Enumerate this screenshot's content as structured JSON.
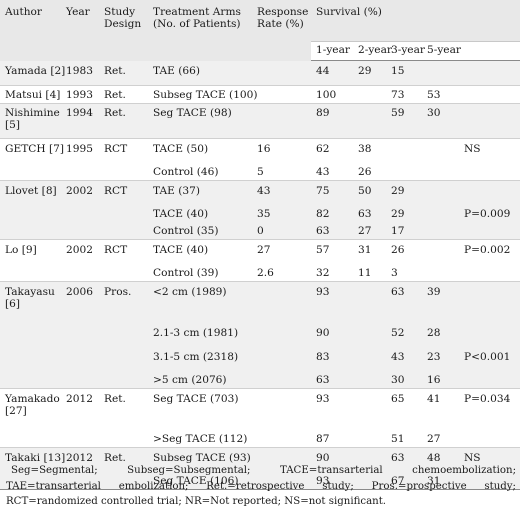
{
  "headers": {
    "author": "Author",
    "year": "Year",
    "design_line1": "Study",
    "design_line2": "Design",
    "arms_line1": "Treatment Arms",
    "arms_line2": "(No. of Patients)",
    "response_line1": "Response",
    "response_line2": "Rate (%)",
    "survival": "Survival (%)",
    "y1": "1-year",
    "y2": "2-year",
    "y3": "3-year",
    "y5": "5-year"
  },
  "rows": [
    {
      "author": "Yamada [2]",
      "year": "1983",
      "design": "Ret.",
      "arm": "TAE (66)",
      "rr": "",
      "y1": "44",
      "y2": "29",
      "y3": "15",
      "y5": "",
      "p": ""
    },
    {
      "author": "Matsui [4]",
      "year": "1993",
      "design": "Ret.",
      "arm": "Subseg TACE (100)",
      "rr": "",
      "y1": "100",
      "y2": "",
      "y3": "73",
      "y5": "53",
      "p": ""
    },
    {
      "author": "Nishimine [5]",
      "year": "1994",
      "design": "Ret.",
      "arm": "Seg TACE (98)",
      "rr": "",
      "y1": "89",
      "y2": "",
      "y3": "59",
      "y5": "30",
      "p": ""
    },
    {
      "author": "GETCH [7]",
      "year": "1995",
      "design": "RCT",
      "arm": "TACE (50)",
      "rr": "16",
      "y1": "62",
      "y2": "38",
      "y3": "",
      "y5": "",
      "p": "NS"
    },
    {
      "author": "",
      "year": "",
      "design": "",
      "arm": "Control (46)",
      "rr": "5",
      "y1": "43",
      "y2": "26",
      "y3": "",
      "y5": "",
      "p": ""
    },
    {
      "author": "Llovet [8]",
      "year": "2002",
      "design": "RCT",
      "arm": "TAE (37)",
      "rr": "43",
      "y1": "75",
      "y2": "50",
      "y3": "29",
      "y5": "",
      "p": ""
    },
    {
      "author": "",
      "year": "",
      "design": "",
      "arm": "TACE (40)",
      "rr": "35",
      "y1": "82",
      "y2": "63",
      "y3": "29",
      "y5": "",
      "p": "P=0.009"
    },
    {
      "author": "",
      "year": "",
      "design": "",
      "arm": "Control (35)",
      "rr": "0",
      "y1": "63",
      "y2": "27",
      "y3": "17",
      "y5": "",
      "p": ""
    },
    {
      "author": "Lo [9]",
      "year": "2002",
      "design": "RCT",
      "arm": "TACE (40)",
      "rr": "27",
      "y1": "57",
      "y2": "31",
      "y3": "26",
      "y5": "",
      "p": "P=0.002"
    },
    {
      "author": "",
      "year": "",
      "design": "",
      "arm": "Control (39)",
      "rr": "2.6",
      "y1": "32",
      "y2": "11",
      "y3": "3",
      "y5": "",
      "p": ""
    },
    {
      "author": "Takayasu [6]",
      "year": "2006",
      "design": "Pros.",
      "arm": "<2 cm (1989)",
      "rr": "",
      "y1": "93",
      "y2": "",
      "y3": "63",
      "y5": "39",
      "p": ""
    },
    {
      "author": "",
      "year": "",
      "design": "",
      "arm": "2.1-3 cm (1981)",
      "rr": "",
      "y1": "90",
      "y2": "",
      "y3": "52",
      "y5": "28",
      "p": ""
    },
    {
      "author": "",
      "year": "",
      "design": "",
      "arm": "3.1-5 cm (2318)",
      "rr": "",
      "y1": "83",
      "y2": "",
      "y3": "43",
      "y5": "23",
      "p": "P<0.001"
    },
    {
      "author": "",
      "year": "",
      "design": "",
      "arm": ">5 cm (2076)",
      "rr": "",
      "y1": "63",
      "y2": "",
      "y3": "30",
      "y5": "16",
      "p": ""
    },
    {
      "author": "Yamakado [27]",
      "year": "2012",
      "design": "Ret.",
      "arm": "Seg TACE (703)",
      "rr": "",
      "y1": "93",
      "y2": "",
      "y3": "65",
      "y5": "41",
      "p": "P=0.034"
    },
    {
      "author": "",
      "year": "",
      "design": "",
      "arm": ">Seg TACE (112)",
      "rr": "",
      "y1": "87",
      "y2": "",
      "y3": "51",
      "y5": "27",
      "p": ""
    },
    {
      "author": "Takaki [13]",
      "year": "2012",
      "design": "Ret.",
      "arm": "Subseg TACE (93)",
      "rr": "",
      "y1": "90",
      "y2": "",
      "y3": "63",
      "y5": "48",
      "p": "NS"
    },
    {
      "author": "",
      "year": "",
      "design": "",
      "arm": "Seg TACE (106)",
      "rr": "",
      "y1": "93",
      "y2": "",
      "y3": "67",
      "y5": "31",
      "p": ""
    }
  ],
  "footnote": "Seg=Segmental; Subseg=Subsegmental; TACE=transarterial chemoembolization; TAE=transarterial embolization; Ret.=retrospective study; Pros.=prospective study; RCT=randomized controlled trial; NR=Not reported; NS=not significant."
}
